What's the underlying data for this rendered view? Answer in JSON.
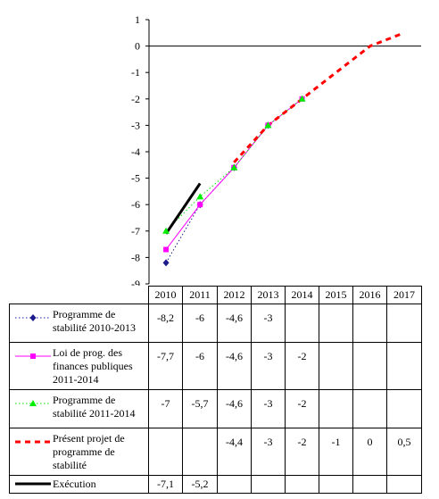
{
  "chart_data": {
    "type": "line",
    "x": [
      "2010",
      "2011",
      "2012",
      "2013",
      "2014",
      "2015",
      "2016",
      "2017"
    ],
    "ylim": [
      -9,
      1
    ],
    "yticks": [
      "1",
      "0",
      "-1",
      "-2",
      "-3",
      "-4",
      "-5",
      "-6",
      "-7",
      "-8",
      "-9"
    ],
    "grid": false,
    "series": [
      {
        "name": "Programme de stabilité 2010-2013",
        "color": "#1c1c8c",
        "style": "dotted",
        "marker": "diamond",
        "values": [
          -8.2,
          -6,
          -4.6,
          -3,
          null,
          null,
          null,
          null
        ],
        "labels": [
          "-8,2",
          "-6",
          "-4,6",
          "-3",
          "",
          "",
          "",
          ""
        ]
      },
      {
        "name": "Loi de prog. des finances publiques 2011-2014",
        "color": "#ff00ff",
        "style": "solid",
        "marker": "square",
        "values": [
          -7.7,
          -6,
          -4.6,
          -3,
          -2,
          null,
          null,
          null
        ],
        "labels": [
          "-7,7",
          "-6",
          "-4,6",
          "-3",
          "-2",
          "",
          "",
          ""
        ]
      },
      {
        "name": "Programme de stabilité 2011-2014",
        "color": "#00ee00",
        "style": "dotted",
        "marker": "triangle",
        "values": [
          -7,
          -5.7,
          -4.6,
          -3,
          -2,
          null,
          null,
          null
        ],
        "labels": [
          "-7",
          "-5,7",
          "-4,6",
          "-3",
          "-2",
          "",
          "",
          ""
        ]
      },
      {
        "name": "Présent projet de programme de stabilité",
        "color": "#ff0000",
        "style": "dashed",
        "marker": "none",
        "values": [
          null,
          null,
          -4.4,
          -3,
          -2,
          -1,
          0,
          0.5
        ],
        "labels": [
          "",
          "",
          "-4,4",
          "-3",
          "-2",
          "-1",
          "0",
          "0,5"
        ]
      },
      {
        "name": "Exécution",
        "color": "#000000",
        "style": "thick",
        "marker": "none",
        "values": [
          -7.1,
          -5.2,
          null,
          null,
          null,
          null,
          null,
          null
        ],
        "labels": [
          "-7,1",
          "-5,2",
          "",
          "",
          "",
          "",
          "",
          ""
        ]
      }
    ]
  }
}
